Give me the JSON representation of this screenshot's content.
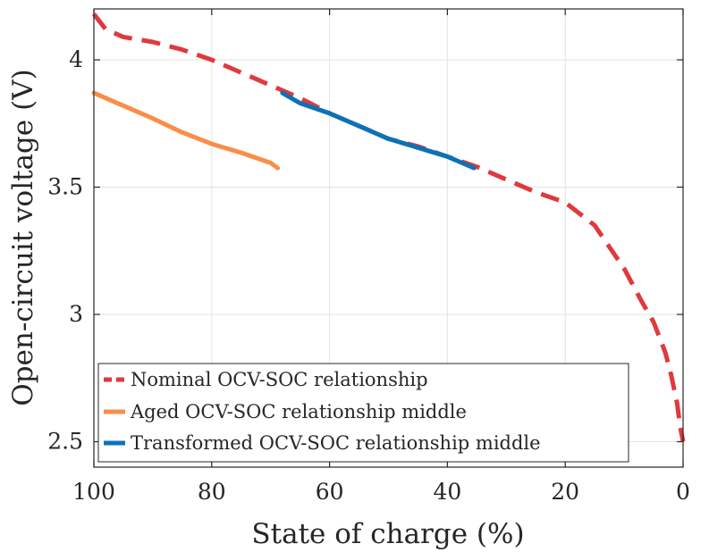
{
  "chart_data": {
    "type": "line",
    "title": "",
    "xlabel": "State of charge (%)",
    "ylabel": "Open-circuit voltage (V)",
    "xlim": [
      100,
      0
    ],
    "ylim": [
      2.4,
      4.2
    ],
    "x_reversed": true,
    "grid": true,
    "legend_position": "bottom-left",
    "x_ticks": [
      100,
      80,
      60,
      40,
      20,
      0
    ],
    "x_tick_labels": [
      "100",
      "80",
      "60",
      "40",
      "20",
      "0"
    ],
    "y_ticks": [
      2.5,
      3,
      3.5,
      4
    ],
    "y_tick_labels": [
      "2.5",
      "3",
      "3.5",
      "4"
    ],
    "series": [
      {
        "name": "Nominal OCV-SOC relationship",
        "color": "#e0393e",
        "style": "dashed",
        "x": [
          100,
          98,
          95,
          90,
          85,
          80,
          75,
          70,
          65,
          60,
          55,
          50,
          45,
          40,
          35,
          30,
          25,
          20,
          15,
          10,
          7,
          5,
          3,
          2,
          1,
          0.5,
          0
        ],
        "y": [
          4.18,
          4.12,
          4.09,
          4.07,
          4.04,
          4.0,
          3.95,
          3.9,
          3.85,
          3.79,
          3.74,
          3.69,
          3.66,
          3.62,
          3.58,
          3.53,
          3.48,
          3.44,
          3.35,
          3.18,
          3.05,
          2.97,
          2.85,
          2.76,
          2.65,
          2.56,
          2.5
        ]
      },
      {
        "name": "Aged OCV-SOC relationship middle",
        "color": "#f98e48",
        "style": "solid",
        "x": [
          100,
          95,
          90,
          85,
          80,
          75,
          70,
          68.8
        ],
        "y": [
          3.87,
          3.82,
          3.77,
          3.715,
          3.67,
          3.635,
          3.595,
          3.575
        ]
      },
      {
        "name": "Transformed OCV-SOC relationship middle",
        "color": "#0b72b6",
        "style": "solid",
        "x": [
          68,
          65,
          60,
          55,
          50,
          45,
          40,
          35.5
        ],
        "y": [
          3.87,
          3.83,
          3.79,
          3.74,
          3.69,
          3.655,
          3.62,
          3.575
        ]
      }
    ]
  }
}
